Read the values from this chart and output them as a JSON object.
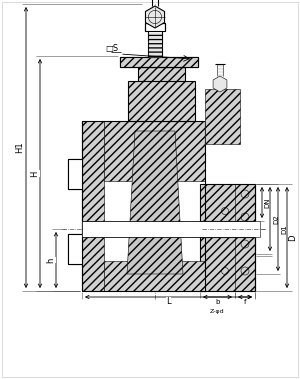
{
  "bg_color": "#ffffff",
  "line_color": "#000000",
  "figsize": [
    3.0,
    3.79
  ],
  "dpi": 100,
  "labels": {
    "S": "□S",
    "H1": "H1",
    "H": "H",
    "h": "h",
    "L": "L",
    "DN": "DN",
    "D2": "D2",
    "D1": "D1",
    "D": "D",
    "Z_bolt": "Z-φd",
    "f": "f",
    "b": "b"
  },
  "colors": {
    "hatch_face": "#d8d8d8",
    "white": "#ffffff",
    "light_gray": "#eeeeee",
    "dim_line": "#000000",
    "center_line": "#000000",
    "body_outline": "#000000"
  }
}
